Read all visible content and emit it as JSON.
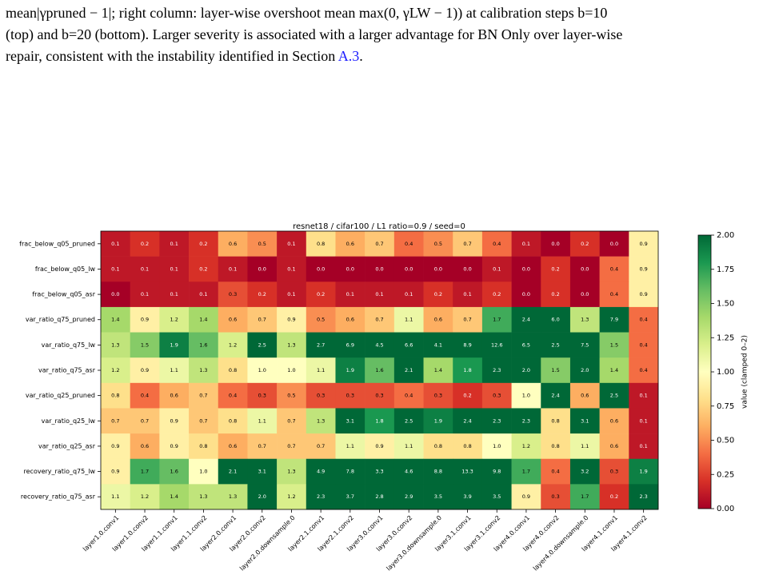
{
  "caption": {
    "lines": [
      "mean|γpruned − 1|; right column: layer-wise overshoot mean max(0, γLW − 1)) at calibration steps b=10",
      "(top) and b=20 (bottom). Larger severity is associated with a larger advantage for BN Only over layer-wise",
      "repair, consistent with the instability identified in Section "
    ],
    "link": "A.3",
    "after_link": "."
  },
  "chart_data": {
    "type": "heatmap",
    "title": "resnet18 / cifar100 / L1 ratio=0.9 / seed=0",
    "x": [
      "layer1.0.conv1",
      "layer1.0.conv2",
      "layer1.1.conv1",
      "layer1.1.conv2",
      "layer2.0.conv1",
      "layer2.0.conv2",
      "layer2.0.downsample.0",
      "layer2.1.conv1",
      "layer2.1.conv2",
      "layer3.0.conv1",
      "layer3.0.conv2",
      "layer3.0.downsample.0",
      "layer3.1.conv1",
      "layer3.1.conv2",
      "layer4.0.conv1",
      "layer4.0.conv2",
      "layer4.0.downsample.0",
      "layer4.1.conv1",
      "layer4.1.conv2"
    ],
    "y": [
      "frac_below_q05_pruned",
      "frac_below_q05_lw",
      "frac_below_q05_asr",
      "var_ratio_q75_pruned",
      "var_ratio_q75_lw",
      "var_ratio_q75_asr",
      "var_ratio_q25_pruned",
      "var_ratio_q25_lw",
      "var_ratio_q25_asr",
      "recovery_ratio_q75_lw",
      "recovery_ratio_q75_asr"
    ],
    "values": [
      [
        0.1,
        0.2,
        0.1,
        0.2,
        0.6,
        0.5,
        0.1,
        0.8,
        0.6,
        0.7,
        0.4,
        0.5,
        0.7,
        0.4,
        0.1,
        0.0,
        0.2,
        0.0,
        0.9
      ],
      [
        0.1,
        0.1,
        0.1,
        0.2,
        0.1,
        0.0,
        0.1,
        0.0,
        0.0,
        0.0,
        0.0,
        0.0,
        0.0,
        0.1,
        0.0,
        0.2,
        0.0,
        0.4,
        0.9
      ],
      [
        0.0,
        0.1,
        0.1,
        0.1,
        0.3,
        0.2,
        0.1,
        0.2,
        0.1,
        0.1,
        0.1,
        0.2,
        0.1,
        0.2,
        0.0,
        0.2,
        0.0,
        0.4,
        0.9
      ],
      [
        1.4,
        0.9,
        1.2,
        1.4,
        0.6,
        0.7,
        0.9,
        0.5,
        0.6,
        0.7,
        1.1,
        0.6,
        0.7,
        1.7,
        2.4,
        6.0,
        1.3,
        7.9,
        0.4
      ],
      [
        1.3,
        1.5,
        1.9,
        1.6,
        1.2,
        2.5,
        1.3,
        2.7,
        6.9,
        4.5,
        6.6,
        4.1,
        8.9,
        12.6,
        6.5,
        2.5,
        7.5,
        1.5,
        0.4
      ],
      [
        1.2,
        0.9,
        1.1,
        1.3,
        0.8,
        1.0,
        1.0,
        1.1,
        1.9,
        1.6,
        2.1,
        1.4,
        1.8,
        2.3,
        2.0,
        1.5,
        2.0,
        1.4,
        0.4
      ],
      [
        0.8,
        0.4,
        0.6,
        0.7,
        0.4,
        0.3,
        0.5,
        0.3,
        0.3,
        0.3,
        0.4,
        0.3,
        0.2,
        0.3,
        1.0,
        2.4,
        0.6,
        2.5,
        0.1
      ],
      [
        0.7,
        0.7,
        0.9,
        0.7,
        0.8,
        1.1,
        0.7,
        1.3,
        3.1,
        1.8,
        2.5,
        1.9,
        2.4,
        2.3,
        2.3,
        0.8,
        3.1,
        0.6,
        0.1
      ],
      [
        0.9,
        0.6,
        0.9,
        0.8,
        0.6,
        0.7,
        0.7,
        0.7,
        1.1,
        0.9,
        1.1,
        0.8,
        0.8,
        1.0,
        1.2,
        0.8,
        1.1,
        0.6,
        0.1
      ],
      [
        0.9,
        1.7,
        1.6,
        1.0,
        2.1,
        3.1,
        1.3,
        4.9,
        7.8,
        3.3,
        4.6,
        8.8,
        13.3,
        9.8,
        1.7,
        0.4,
        3.2,
        0.3,
        1.9
      ],
      [
        1.1,
        1.2,
        1.4,
        1.3,
        1.3,
        2.0,
        1.2,
        2.3,
        3.7,
        2.8,
        2.9,
        3.5,
        3.9,
        3.5,
        0.9,
        0.3,
        1.7,
        0.2,
        2.3
      ]
    ],
    "value_labels": [
      [
        "0.1",
        "0.2",
        "0.1",
        "0.2",
        "0.6",
        "0.5",
        "0.1",
        "0.8",
        "0.6",
        "0.7",
        "0.4",
        "0.5",
        "0.7",
        "0.4",
        "0.1",
        "0.0",
        "0.2",
        "0.0",
        "0.9"
      ],
      [
        "0.1",
        "0.1",
        "0.1",
        "0.2",
        "0.1",
        "0.0",
        "0.1",
        "0.0",
        "0.0",
        "0.0",
        "0.0",
        "0.0",
        "0.0",
        "0.1",
        "0.0",
        "0.2",
        "0.0",
        "0.4",
        "0.9"
      ],
      [
        "0.0",
        "0.1",
        "0.1",
        "0.1",
        "0.3",
        "0.2",
        "0.1",
        "0.2",
        "0.1",
        "0.1",
        "0.1",
        "0.2",
        "0.1",
        "0.2",
        "0.0",
        "0.2",
        "0.0",
        "0.4",
        "0.9"
      ],
      [
        "1.4",
        "0.9",
        "1.2",
        "1.4",
        "0.6",
        "0.7",
        "0.9",
        "0.5",
        "0.6",
        "0.7",
        "1.1",
        "0.6",
        "0.7",
        "1.7",
        "2.4",
        "6.0",
        "1.3",
        "7.9",
        "0.4"
      ],
      [
        "1.3",
        "1.5",
        "1.9",
        "1.6",
        "1.2",
        "2.5",
        "1.3",
        "2.7",
        "6.9",
        "4.5",
        "6.6",
        "4.1",
        "8.9",
        "12.6",
        "6.5",
        "2.5",
        "7.5",
        "1.5",
        "0.4"
      ],
      [
        "1.2",
        "0.9",
        "1.1",
        "1.3",
        "0.8",
        "1.0",
        "1.0",
        "1.1",
        "1.9",
        "1.6",
        "2.1",
        "1.4",
        "1.8",
        "2.3",
        "2.0",
        "1.5",
        "2.0",
        "1.4",
        "0.4"
      ],
      [
        "0.8",
        "0.4",
        "0.6",
        "0.7",
        "0.4",
        "0.3",
        "0.5",
        "0.3",
        "0.3",
        "0.3",
        "0.4",
        "0.3",
        "0.2",
        "0.3",
        "1.0",
        "2.4",
        "0.6",
        "2.5",
        "0.1"
      ],
      [
        "0.7",
        "0.7",
        "0.9",
        "0.7",
        "0.8",
        "1.1",
        "0.7",
        "1.3",
        "3.1",
        "1.8",
        "2.5",
        "1.9",
        "2.4",
        "2.3",
        "2.3",
        "0.8",
        "3.1",
        "0.6",
        "0.1"
      ],
      [
        "0.9",
        "0.6",
        "0.9",
        "0.8",
        "0.6",
        "0.7",
        "0.7",
        "0.7",
        "1.1",
        "0.9",
        "1.1",
        "0.8",
        "0.8",
        "1.0",
        "1.2",
        "0.8",
        "1.1",
        "0.6",
        "0.1"
      ],
      [
        "0.9",
        "1.7",
        "1.6",
        "1.0",
        "2.1",
        "3.1",
        "1.3",
        "4.9",
        "7.8",
        "3.3",
        "4.6",
        "8.8",
        "13.3",
        "9.8",
        "1.7",
        "0.4",
        "3.2",
        "0.3",
        "1.9"
      ],
      [
        "1.1",
        "1.2",
        "1.4",
        "1.3",
        "1.3",
        "2.0",
        "1.2",
        "2.3",
        "3.7",
        "2.8",
        "2.9",
        "3.5",
        "3.9",
        "3.5",
        "0.9",
        "0.3",
        "1.7",
        "0.2",
        "2.3"
      ]
    ],
    "colormap": "RdYlGn",
    "clim": [
      0,
      2
    ],
    "colorbar_label": "value (clamped 0–2)",
    "cticks": [
      {
        "value": 0,
        "label": "0.00"
      },
      {
        "value": 0.25,
        "label": "0.25"
      },
      {
        "value": 0.5,
        "label": "0.50"
      },
      {
        "value": 0.75,
        "label": "0.75"
      },
      {
        "value": 1,
        "label": "1.00"
      },
      {
        "value": 1.25,
        "label": "1.25"
      },
      {
        "value": 1.5,
        "label": "1.50"
      },
      {
        "value": 1.75,
        "label": "1.75"
      },
      {
        "value": 2,
        "label": "2.00"
      }
    ]
  }
}
